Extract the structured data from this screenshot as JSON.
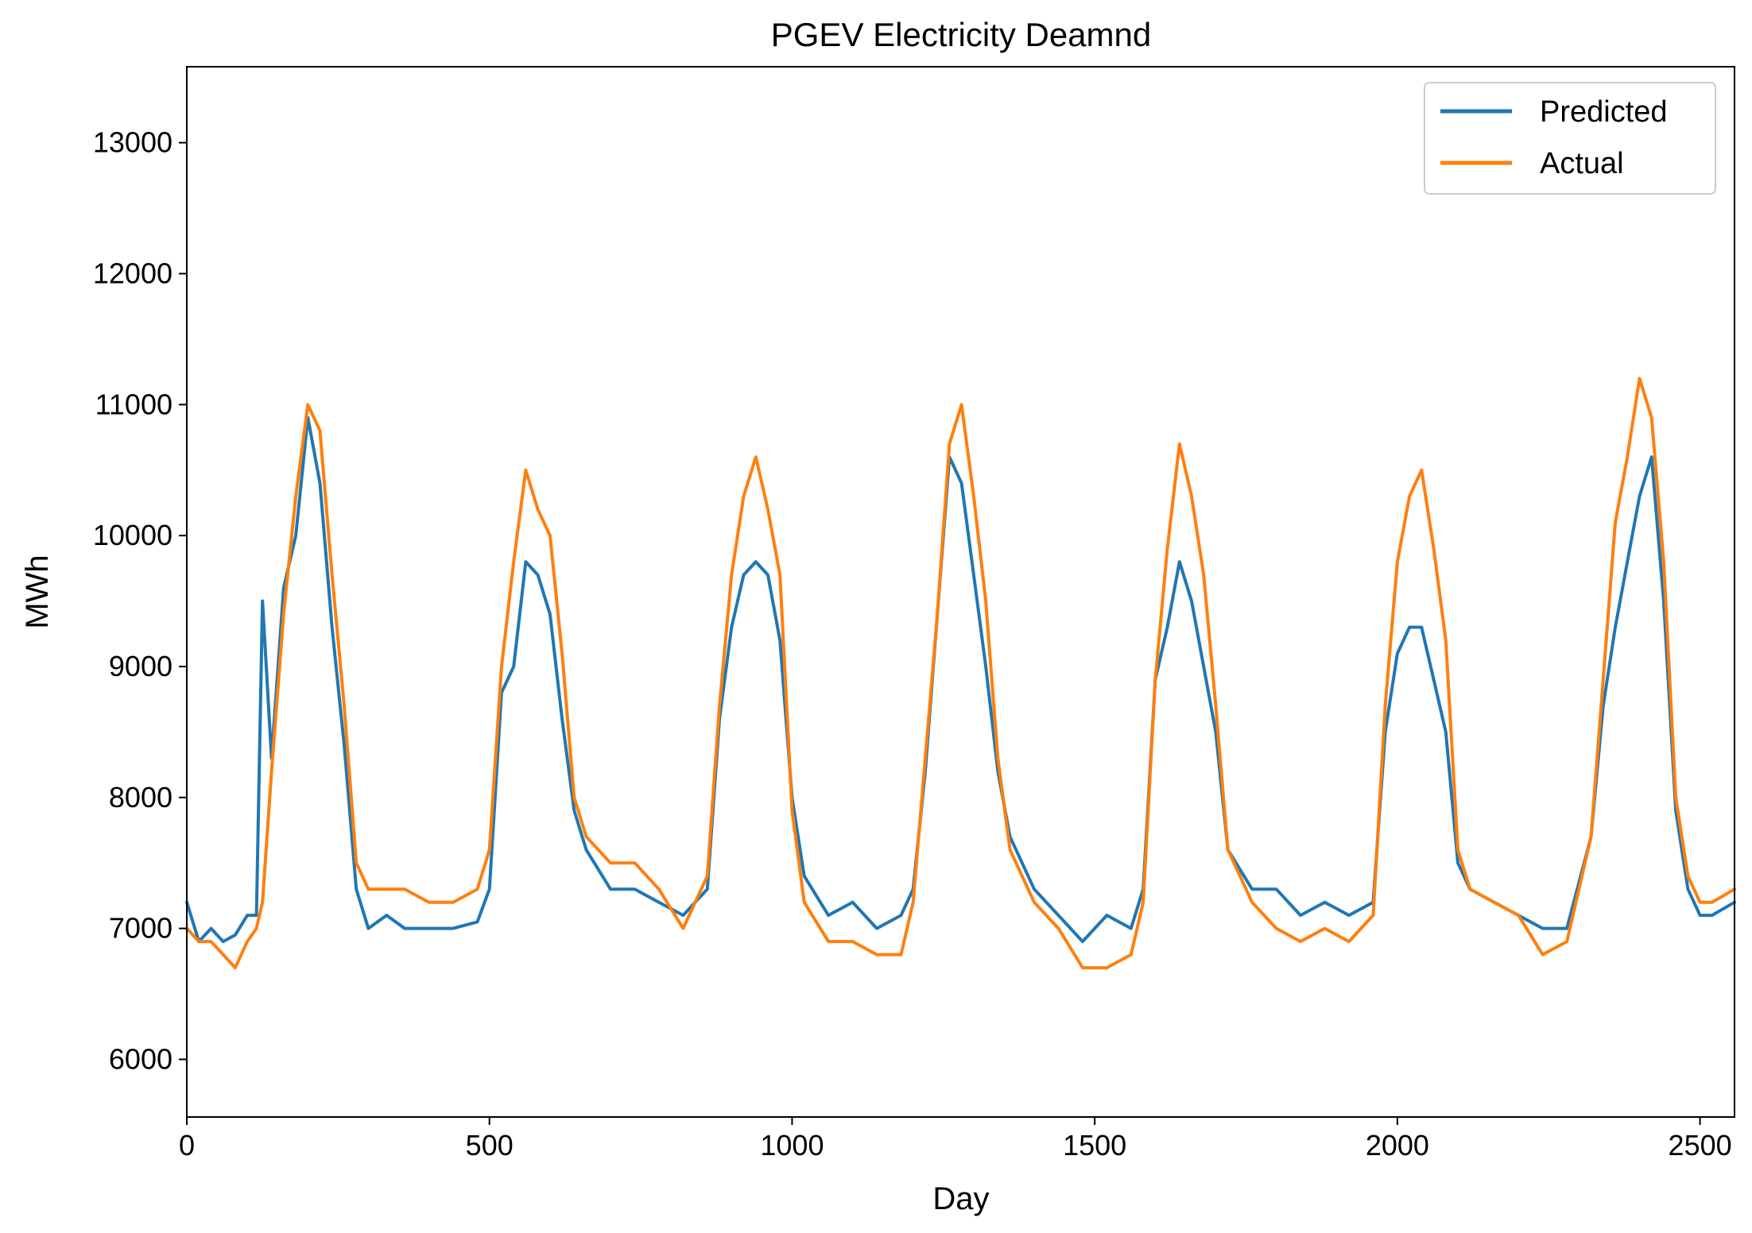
{
  "chart_data": {
    "type": "line",
    "title": "PGEV Electricity Deamnd",
    "xlabel": "Day",
    "ylabel": "MWh",
    "xlim": [
      0,
      2557
    ],
    "ylim": [
      5560,
      13580
    ],
    "xticks": [
      0,
      500,
      1000,
      1500,
      2000,
      2500
    ],
    "yticks": [
      6000,
      7000,
      8000,
      9000,
      10000,
      11000,
      12000,
      13000
    ],
    "grid": false,
    "legend_position": "top-right",
    "series": [
      {
        "name": "Predicted",
        "color": "#1f77b4",
        "x": [
          0,
          20,
          40,
          60,
          80,
          100,
          115,
          125,
          140,
          160,
          180,
          200,
          220,
          240,
          260,
          280,
          300,
          330,
          360,
          400,
          440,
          480,
          500,
          520,
          540,
          560,
          580,
          600,
          620,
          640,
          660,
          700,
          740,
          780,
          820,
          860,
          880,
          900,
          920,
          940,
          960,
          980,
          1000,
          1020,
          1060,
          1100,
          1140,
          1180,
          1200,
          1220,
          1240,
          1260,
          1280,
          1300,
          1320,
          1340,
          1360,
          1400,
          1440,
          1480,
          1520,
          1560,
          1580,
          1600,
          1620,
          1640,
          1660,
          1680,
          1700,
          1720,
          1760,
          1800,
          1840,
          1880,
          1920,
          1960,
          1980,
          2000,
          2020,
          2040,
          2060,
          2080,
          2100,
          2120,
          2160,
          2200,
          2240,
          2280,
          2320,
          2340,
          2360,
          2380,
          2400,
          2420,
          2440,
          2460,
          2480,
          2500,
          2520,
          2557
        ],
        "y": [
          7200,
          6900,
          7000,
          6900,
          6950,
          7100,
          7100,
          9500,
          8300,
          9600,
          10000,
          10900,
          10400,
          9300,
          8400,
          7300,
          7000,
          7100,
          7000,
          7000,
          7000,
          7050,
          7300,
          8800,
          9000,
          9800,
          9700,
          9400,
          8600,
          7900,
          7600,
          7300,
          7300,
          7200,
          7100,
          7300,
          8600,
          9300,
          9700,
          9800,
          9700,
          9200,
          8000,
          7400,
          7100,
          7200,
          7000,
          7100,
          7300,
          8200,
          9400,
          10600,
          10400,
          9700,
          9000,
          8200,
          7700,
          7300,
          7100,
          6900,
          7100,
          7000,
          7300,
          8900,
          9300,
          9800,
          9500,
          9000,
          8500,
          7600,
          7300,
          7300,
          7100,
          7200,
          7100,
          7200,
          8500,
          9100,
          9300,
          9300,
          8900,
          8500,
          7500,
          7300,
          7200,
          7100,
          7000,
          7000,
          7700,
          8700,
          9300,
          9800,
          10300,
          10600,
          9500,
          7900,
          7300,
          7100,
          7100,
          7200
        ]
      },
      {
        "name": "Actual",
        "color": "#ff7f0e",
        "x": [
          0,
          20,
          40,
          60,
          80,
          100,
          115,
          125,
          140,
          160,
          180,
          200,
          220,
          240,
          260,
          280,
          300,
          330,
          360,
          400,
          440,
          480,
          500,
          520,
          540,
          560,
          580,
          600,
          620,
          640,
          660,
          700,
          740,
          780,
          820,
          860,
          880,
          900,
          920,
          940,
          960,
          980,
          1000,
          1020,
          1060,
          1100,
          1140,
          1180,
          1200,
          1220,
          1240,
          1260,
          1280,
          1300,
          1320,
          1340,
          1360,
          1400,
          1440,
          1480,
          1520,
          1560,
          1580,
          1600,
          1620,
          1640,
          1660,
          1680,
          1700,
          1720,
          1760,
          1800,
          1840,
          1880,
          1920,
          1960,
          1980,
          2000,
          2020,
          2040,
          2060,
          2080,
          2100,
          2120,
          2160,
          2200,
          2240,
          2280,
          2320,
          2340,
          2360,
          2380,
          2400,
          2420,
          2440,
          2460,
          2480,
          2500,
          2520,
          2557
        ],
        "y": [
          7000,
          6900,
          6900,
          6800,
          6700,
          6900,
          7000,
          7200,
          8200,
          9400,
          10300,
          11000,
          10800,
          9700,
          8700,
          7500,
          7300,
          7300,
          7300,
          7200,
          7200,
          7300,
          7600,
          9000,
          9800,
          10500,
          10200,
          10000,
          9100,
          8000,
          7700,
          7500,
          7500,
          7300,
          7000,
          7400,
          8700,
          9700,
          10300,
          10600,
          10200,
          9700,
          7900,
          7200,
          6900,
          6900,
          6800,
          6800,
          7200,
          8300,
          9400,
          10700,
          11000,
          10300,
          9500,
          8300,
          7600,
          7200,
          7000,
          6700,
          6700,
          6800,
          7200,
          8900,
          9900,
          10700,
          10300,
          9700,
          8700,
          7600,
          7200,
          7000,
          6900,
          7000,
          6900,
          7100,
          8700,
          9800,
          10300,
          10500,
          9900,
          9200,
          7600,
          7300,
          7200,
          7100,
          6800,
          6900,
          7700,
          8900,
          10100,
          10600,
          11200,
          10900,
          9800,
          8000,
          7400,
          7200,
          7200,
          7300
        ]
      }
    ]
  }
}
